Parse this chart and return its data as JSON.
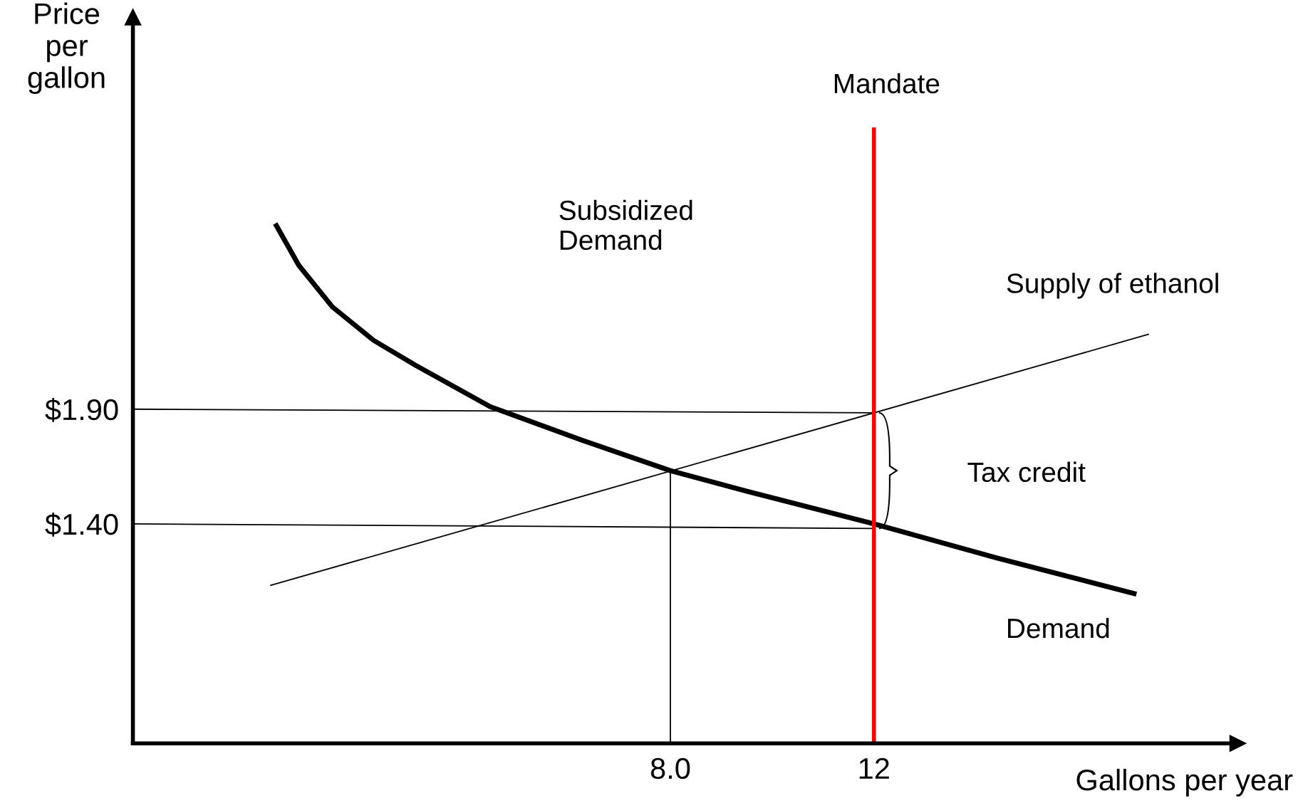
{
  "chart_data": {
    "type": "line",
    "xlabel": "Gallons per year",
    "ylabel": "Price\nper\ngallon",
    "xlim": [
      -2.56,
      19.15
    ],
    "ylim": [
      0.443,
      3.61
    ],
    "xticks": [
      {
        "value": 8,
        "label": "8.0"
      },
      12
    ],
    "yticks": [
      {
        "value": 1.4,
        "label": "$1.40"
      },
      {
        "value": 1.9,
        "label": "$1.90"
      }
    ],
    "grid": false,
    "marker": "none",
    "line_style": "solid",
    "series": [
      {
        "color": "#000000",
        "x": [
          0.26,
          0.7,
          1.36,
          2.17,
          2.99,
          4.46,
          6.25,
          8.0,
          9.52,
          12,
          14.42,
          17.11
        ],
        "values": [
          2.7,
          2.527,
          2.346,
          2.2,
          2.092,
          1.911,
          1.766,
          1.632,
          1.541,
          1.4,
          1.251,
          1.096
        ]
      },
      {
        "color": "#000000",
        "x": [
          0.15,
          17.39
        ],
        "values": [
          1.132,
          2.226
        ]
      },
      {
        "color": "#000000",
        "x": [
          -2.56,
          12
        ],
        "values": [
          1.9,
          1.884
        ]
      },
      {
        "color": "#000000",
        "x": [
          -2.56,
          12
        ],
        "values": [
          1.4,
          1.38
        ]
      },
      {
        "color": "#000000",
        "x": [
          8,
          8
        ],
        "values": [
          0.443,
          1.632
        ]
      },
      {
        "color": "#ff0000",
        "x": [
          12,
          12
        ],
        "values": [
          0.443,
          3.12
        ]
      }
    ],
    "annotations": [
      "Mandate",
      "Subsidized\nDemand",
      "Supply of ethanol",
      "Tax credit",
      "Demand"
    ]
  }
}
